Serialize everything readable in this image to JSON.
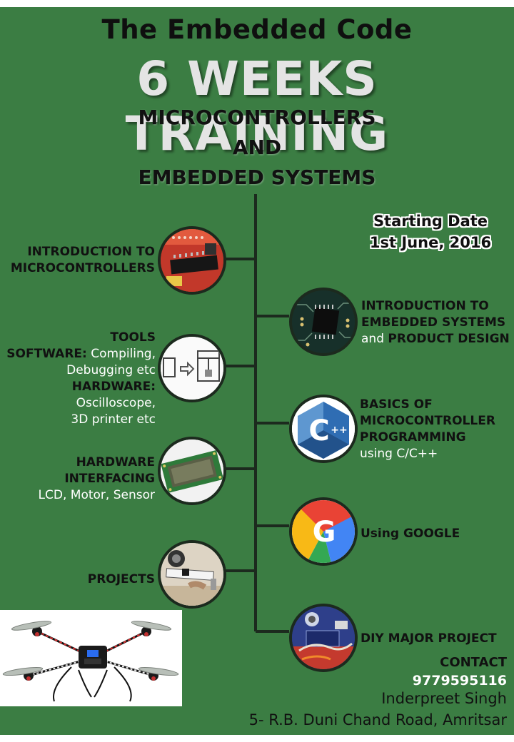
{
  "brand": "The Embedded Code",
  "headline": "6 WEEKS TRAINING",
  "subtitle": [
    "MICROCONTROLLERS",
    "AND",
    "EMBEDDED SYSTEMS"
  ],
  "starting": {
    "line1": "Starting Date",
    "line2": "1st June, 2016"
  },
  "topics": {
    "intro_mc": {
      "line1": "INTRODUCTION TO",
      "line2": "MICROCONTROLLERS",
      "icon": "microcontroller-board"
    },
    "tools": {
      "title": "TOOLS",
      "sw_key": "SOFTWARE:",
      "sw_val": "Compiling,",
      "sw_val2": "Debugging etc",
      "hw_key": "HARDWARE:",
      "hw_val": "Oscilloscope,",
      "hw_val2": "3D printer etc",
      "icon": "3d-printer"
    },
    "hw_iface": {
      "line1": "HARDWARE",
      "line2": "INTERFACING",
      "detail": "LCD, Motor, Sensor",
      "icon": "lcd-module"
    },
    "projects": {
      "label": "PROJECTS",
      "icon": "robot-project"
    },
    "intro_es": {
      "line1": "INTRODUCTION TO",
      "line2": "EMBEDDED SYSTEMS",
      "and": "and",
      "line3": "PRODUCT DESIGN",
      "icon": "chip"
    },
    "basics": {
      "line1": "BASICS OF",
      "line2": "MICROCONTROLLER",
      "line3": "PROGRAMMING",
      "detail": "using C/C++",
      "icon": "cpp-logo",
      "logo_letter": "C",
      "logo_plus": "++"
    },
    "google": {
      "label": "Using GOOGLE",
      "icon": "google-logo",
      "logo_letter": "G"
    },
    "diy": {
      "label": "DIY MAJOR PROJECT",
      "icon": "diy-project"
    }
  },
  "contact": {
    "title": "CONTACT",
    "phone": "9779595116",
    "name": "Inderpreet Singh",
    "address": "5- R.B. Duni Chand Road, Amritsar"
  },
  "colors": {
    "background": "#3b7d43",
    "line": "#1c2a1e",
    "headline": "#e4e4e4"
  }
}
